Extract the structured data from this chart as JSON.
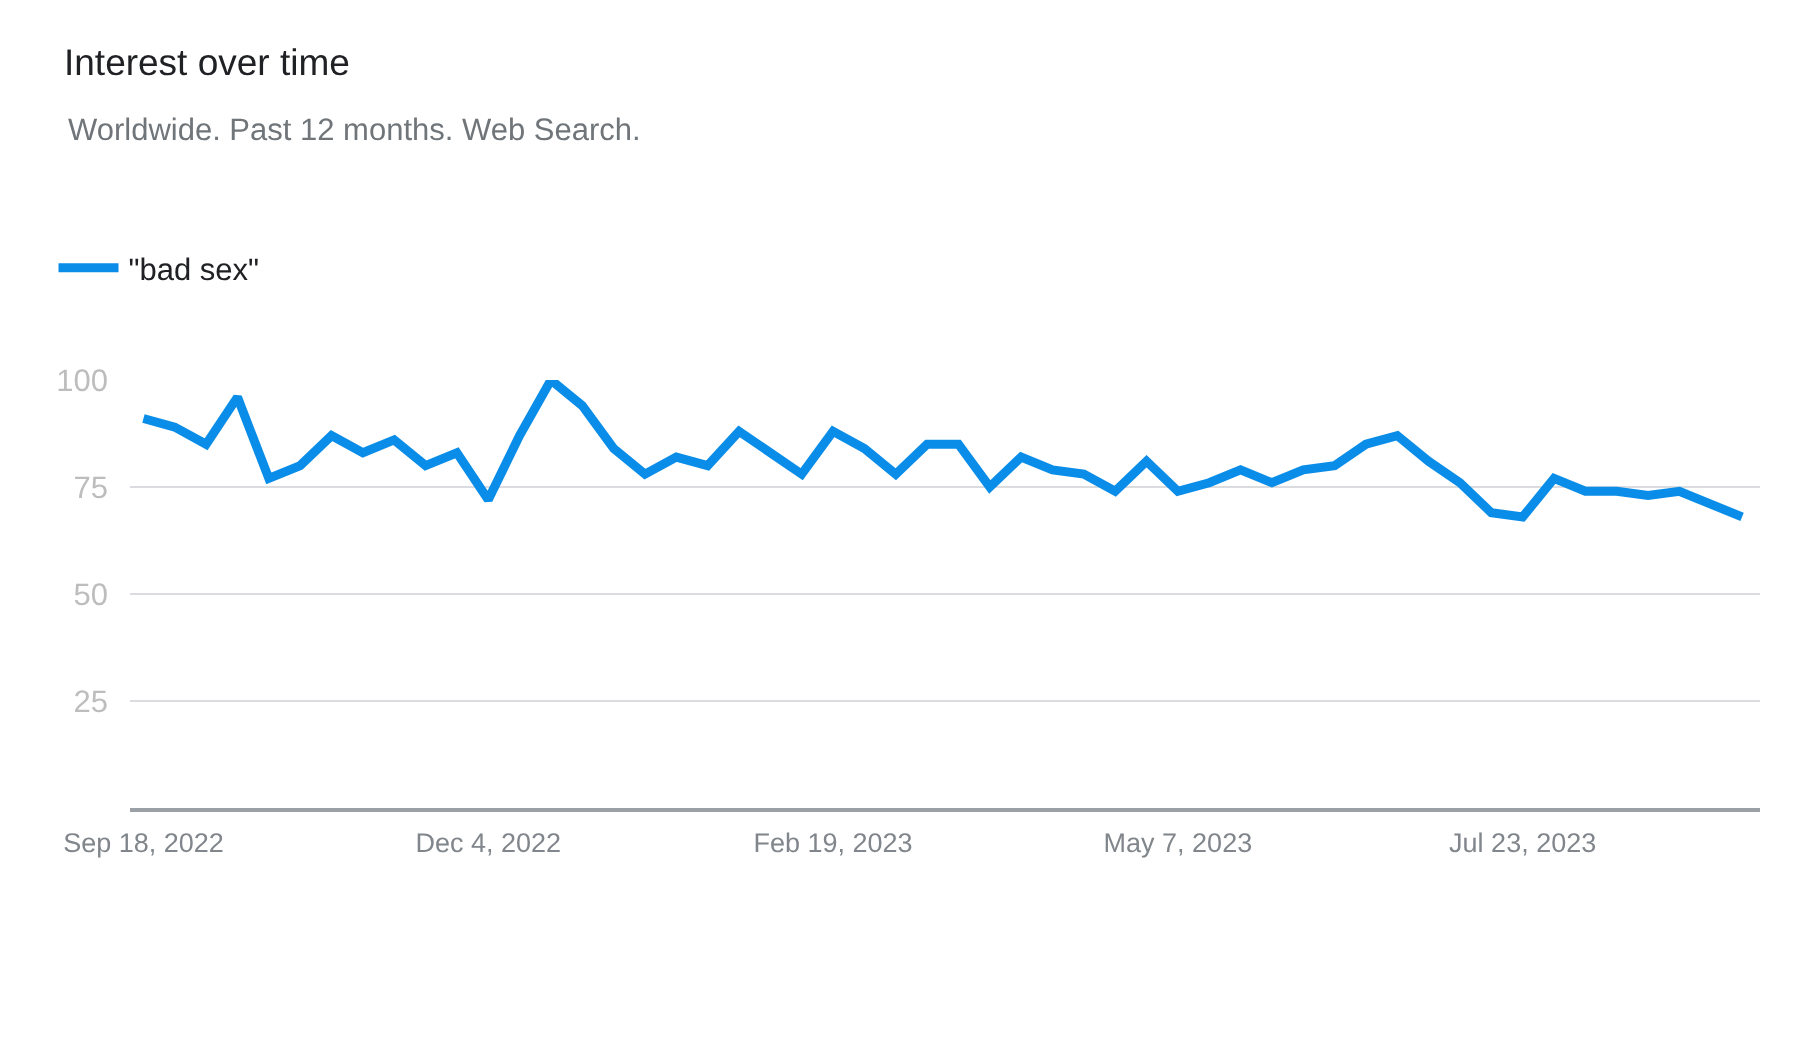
{
  "chart_data": {
    "type": "line",
    "title": "Interest over time",
    "subtitle": "Worldwide. Past 12 months. Web Search.",
    "x": [
      "2022-09-18",
      "2022-09-25",
      "2022-10-02",
      "2022-10-09",
      "2022-10-16",
      "2022-10-23",
      "2022-10-30",
      "2022-11-06",
      "2022-11-13",
      "2022-11-20",
      "2022-11-27",
      "2022-12-04",
      "2022-12-11",
      "2022-12-18",
      "2022-12-25",
      "2023-01-01",
      "2023-01-08",
      "2023-01-15",
      "2023-01-22",
      "2023-01-29",
      "2023-02-05",
      "2023-02-12",
      "2023-02-19",
      "2023-02-26",
      "2023-03-05",
      "2023-03-12",
      "2023-03-19",
      "2023-03-26",
      "2023-04-02",
      "2023-04-09",
      "2023-04-16",
      "2023-04-23",
      "2023-04-30",
      "2023-05-07",
      "2023-05-14",
      "2023-05-21",
      "2023-05-28",
      "2023-06-04",
      "2023-06-11",
      "2023-06-18",
      "2023-06-25",
      "2023-07-02",
      "2023-07-09",
      "2023-07-16",
      "2023-07-23",
      "2023-07-30",
      "2023-08-06",
      "2023-08-13",
      "2023-08-20",
      "2023-08-27",
      "2023-09-03",
      "2023-09-10"
    ],
    "series": [
      {
        "name": "\"bad sex\"",
        "color": "#0a8de8",
        "values": [
          91,
          89,
          85,
          96,
          77,
          80,
          87,
          83,
          86,
          80,
          83,
          72,
          87,
          100,
          94,
          84,
          78,
          82,
          80,
          88,
          83,
          78,
          88,
          84,
          78,
          85,
          85,
          75,
          82,
          79,
          78,
          74,
          81,
          74,
          76,
          79,
          76,
          79,
          80,
          85,
          87,
          81,
          76,
          69,
          68,
          77,
          74,
          74,
          73,
          74,
          71,
          68
        ]
      }
    ],
    "xlim": [
      "2022-09-15",
      "2023-09-14"
    ],
    "xticks": [
      {
        "value": "2022-09-18",
        "label": "Sep 18, 2022"
      },
      {
        "value": "2022-12-04",
        "label": "Dec 4, 2022"
      },
      {
        "value": "2023-02-19",
        "label": "Feb 19, 2023"
      },
      {
        "value": "2023-05-07",
        "label": "May 7, 2023"
      },
      {
        "value": "2023-07-23",
        "label": "Jul 23, 2023"
      }
    ],
    "ylim": [
      0,
      100
    ],
    "yticks": [
      25,
      50,
      75,
      100
    ],
    "grid": "y",
    "legend": "top left",
    "line_style": "solid"
  }
}
